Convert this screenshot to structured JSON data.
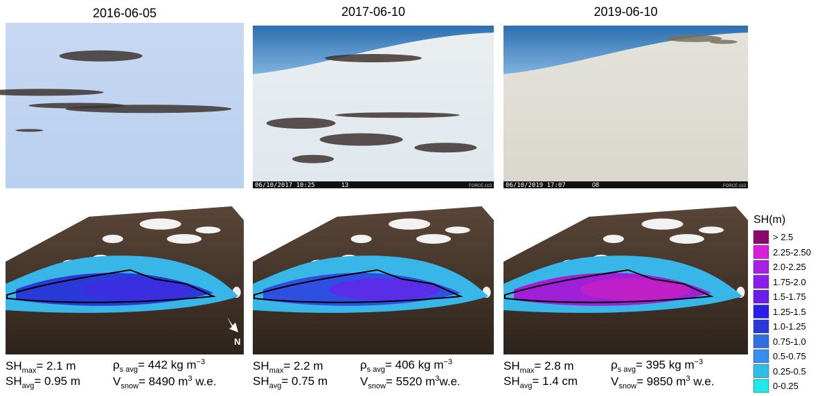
{
  "panels": [
    {
      "date": "2016-06-05",
      "stats": {
        "sh_max": {
          "label": "SH",
          "sub": "max",
          "value": "= 2.1 m"
        },
        "sh_avg": {
          "label": "SH",
          "sub": "avg",
          "value": "= 0.95 m"
        },
        "density": {
          "label": "ρ",
          "sub": "s avg",
          "value": "= 442 kg m",
          "sup": "−3"
        },
        "volume": {
          "label": "V",
          "sub": "snow",
          "value": "= 8490 m",
          "sup": "3",
          "after": " w.e."
        }
      }
    },
    {
      "date": "2017-06-10",
      "stamp": "06/10/2017  10:25",
      "temp": "13",
      "brand": "FORCE-11D",
      "stats": {
        "sh_max": {
          "label": "SH",
          "sub": "max",
          "value": "= 2.2 m"
        },
        "sh_avg": {
          "label": "SH",
          "sub": "avg",
          "value": "= 0.75 m"
        },
        "density": {
          "label": "ρ",
          "sub": "s avg",
          "value": "= 406 kg m",
          "sup": "−3"
        },
        "volume": {
          "label": "V",
          "sub": "snow",
          "value": "= 5520 m",
          "sup": "3",
          "after": "w.e."
        }
      }
    },
    {
      "date": "2019-06-10",
      "stamp": "06/10/2019  17:07",
      "temp": "08",
      "brand": "FORCE-11D",
      "stats": {
        "sh_max": {
          "label": "SH",
          "sub": "max",
          "value": "= 2.8 m"
        },
        "sh_avg": {
          "label": "SH",
          "sub": "avg",
          "value": "= 1.4 cm"
        },
        "density": {
          "label": "ρ",
          "sub": "s avg",
          "value": "= 395 kg m",
          "sup": "−3"
        },
        "volume": {
          "label": "V",
          "sub": "snow",
          "value": "= 9850 m",
          "sup": "3",
          "after": " w.e."
        }
      }
    }
  ],
  "north_label": "N",
  "legend": {
    "title": "SH(m)",
    "items": [
      {
        "label": "> 2.5",
        "color": "#8b0a6e"
      },
      {
        "label": "2.25-2.50",
        "color": "#d81fd8"
      },
      {
        "label": "2.0-2.25",
        "color": "#a820e6"
      },
      {
        "label": "1.75-2.0",
        "color": "#8a1ee8"
      },
      {
        "label": "1.5-1.75",
        "color": "#6a1ee8"
      },
      {
        "label": "1.25-1.5",
        "color": "#2a1ee6"
      },
      {
        "label": "1.0-1.25",
        "color": "#2a3ad8"
      },
      {
        "label": "0.75-1.0",
        "color": "#2f6fe0"
      },
      {
        "label": "0.5-0.75",
        "color": "#3a8ef0"
      },
      {
        "label": "0.25-0.5",
        "color": "#2fbde8"
      },
      {
        "label": "0-0.25",
        "color": "#1ee8e8"
      }
    ]
  }
}
